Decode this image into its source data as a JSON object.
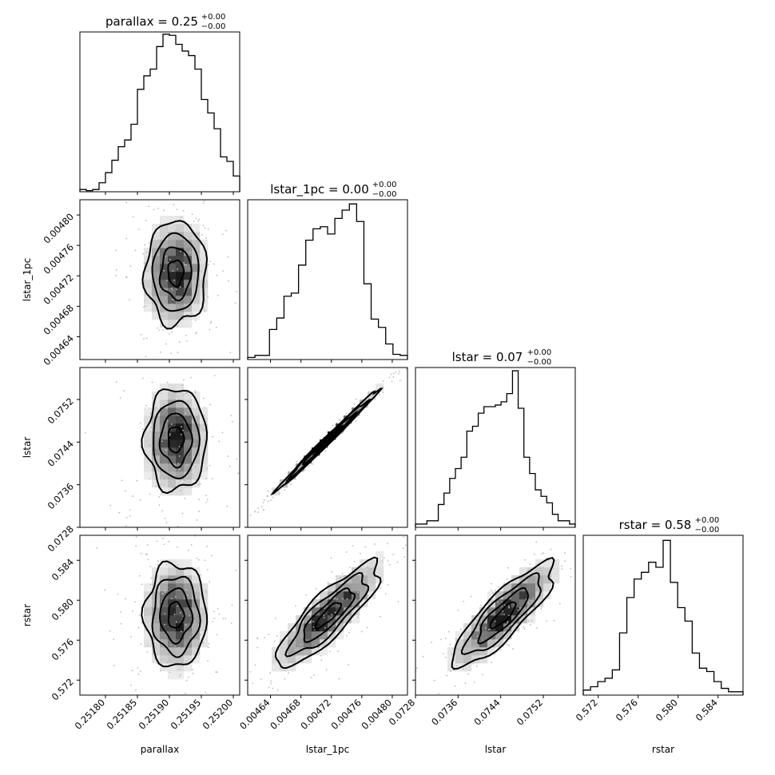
{
  "chart_data": {
    "type": "corner",
    "variables": [
      "parallax",
      "lstar_1pc",
      "lstar",
      "rstar"
    ],
    "ranges": {
      "parallax": [
        0.25176,
        0.25201
      ],
      "lstar_1pc": [
        0.00461,
        0.00482
      ],
      "lstar": [
        0.0728,
        0.0758
      ],
      "rstar": [
        0.5705,
        0.5865
      ]
    },
    "ticks": {
      "parallax": [
        "0.25180",
        "0.25185",
        "0.25190",
        "0.25195",
        "0.25200"
      ],
      "lstar_1pc": [
        "0.00464",
        "0.00468",
        "0.00472",
        "0.00476",
        "0.00480"
      ],
      "lstar": [
        "0.0728",
        "0.0736",
        "0.0744",
        "0.0752"
      ],
      "rstar": [
        "0.572",
        "0.576",
        "0.580",
        "0.584"
      ]
    },
    "titles": [
      {
        "name": "parallax",
        "value": "0.25",
        "plus": "+0.00",
        "minus": "−0.00"
      },
      {
        "name": "lstar_1pc",
        "value": "0.00",
        "plus": "+0.00",
        "minus": "−0.00"
      },
      {
        "name": "lstar",
        "value": "0.07",
        "plus": "+0.00",
        "minus": "−0.00"
      },
      {
        "name": "rstar",
        "value": "0.58",
        "plus": "+0.00",
        "minus": "−0.00"
      }
    ],
    "histograms": {
      "parallax": [
        2,
        1,
        2,
        8,
        17,
        28,
        40,
        46,
        60,
        91,
        103,
        109,
        129,
        140,
        139,
        131,
        125,
        121,
        109,
        82,
        70,
        56,
        31,
        27,
        14
      ],
      "lstar_1pc": [
        2,
        4,
        4,
        29,
        40,
        61,
        64,
        91,
        115,
        126,
        128,
        121,
        136,
        144,
        150,
        133,
        73,
        39,
        31,
        15,
        5,
        4
      ],
      "lstar": [
        2,
        2,
        4,
        4,
        14,
        21,
        30,
        36,
        43,
        59,
        62,
        70,
        74,
        74,
        75,
        77,
        82,
        96,
        73,
        43,
        33,
        23,
        19,
        15,
        8,
        4,
        4,
        2
      ],
      "rstar": [
        3,
        5,
        8,
        10,
        15,
        37,
        58,
        69,
        73,
        79,
        76,
        92,
        67,
        52,
        44,
        25,
        16,
        14,
        8,
        4,
        2,
        2
      ]
    },
    "hist_peaks": {
      "parallax": 142,
      "lstar_1pc": 154,
      "lstar": 98,
      "rstar": 95
    },
    "pairs": [
      {
        "x": "parallax",
        "y": "lstar_1pc",
        "mx": 0.25191,
        "my": 0.004724,
        "sx": 2.4e-05,
        "sy": 3.4e-05,
        "rho": 0.0
      },
      {
        "x": "parallax",
        "y": "lstar",
        "mx": 0.25191,
        "my": 0.07445,
        "sx": 2.4e-05,
        "sy": 0.00048,
        "rho": 0.0
      },
      {
        "x": "parallax",
        "y": "rstar",
        "mx": 0.25191,
        "my": 0.5785,
        "sx": 2.4e-05,
        "sy": 0.0026,
        "rho": 0.0
      },
      {
        "x": "lstar_1pc",
        "y": "lstar",
        "mx": 0.004716,
        "my": 0.07445,
        "sx": 3.4e-05,
        "sy": 0.00048,
        "rho": 0.995
      },
      {
        "x": "lstar_1pc",
        "y": "rstar",
        "mx": 0.004716,
        "my": 0.5785,
        "sx": 3.4e-05,
        "sy": 0.0026,
        "rho": 0.85
      },
      {
        "x": "lstar",
        "y": "rstar",
        "mx": 0.07445,
        "my": 0.5785,
        "sx": 0.00048,
        "sy": 0.0026,
        "rho": 0.85
      }
    ],
    "contour_levels_sigma": [
      0.5,
      1.0,
      1.5,
      2.0
    ],
    "grid": false,
    "legend": "none"
  }
}
